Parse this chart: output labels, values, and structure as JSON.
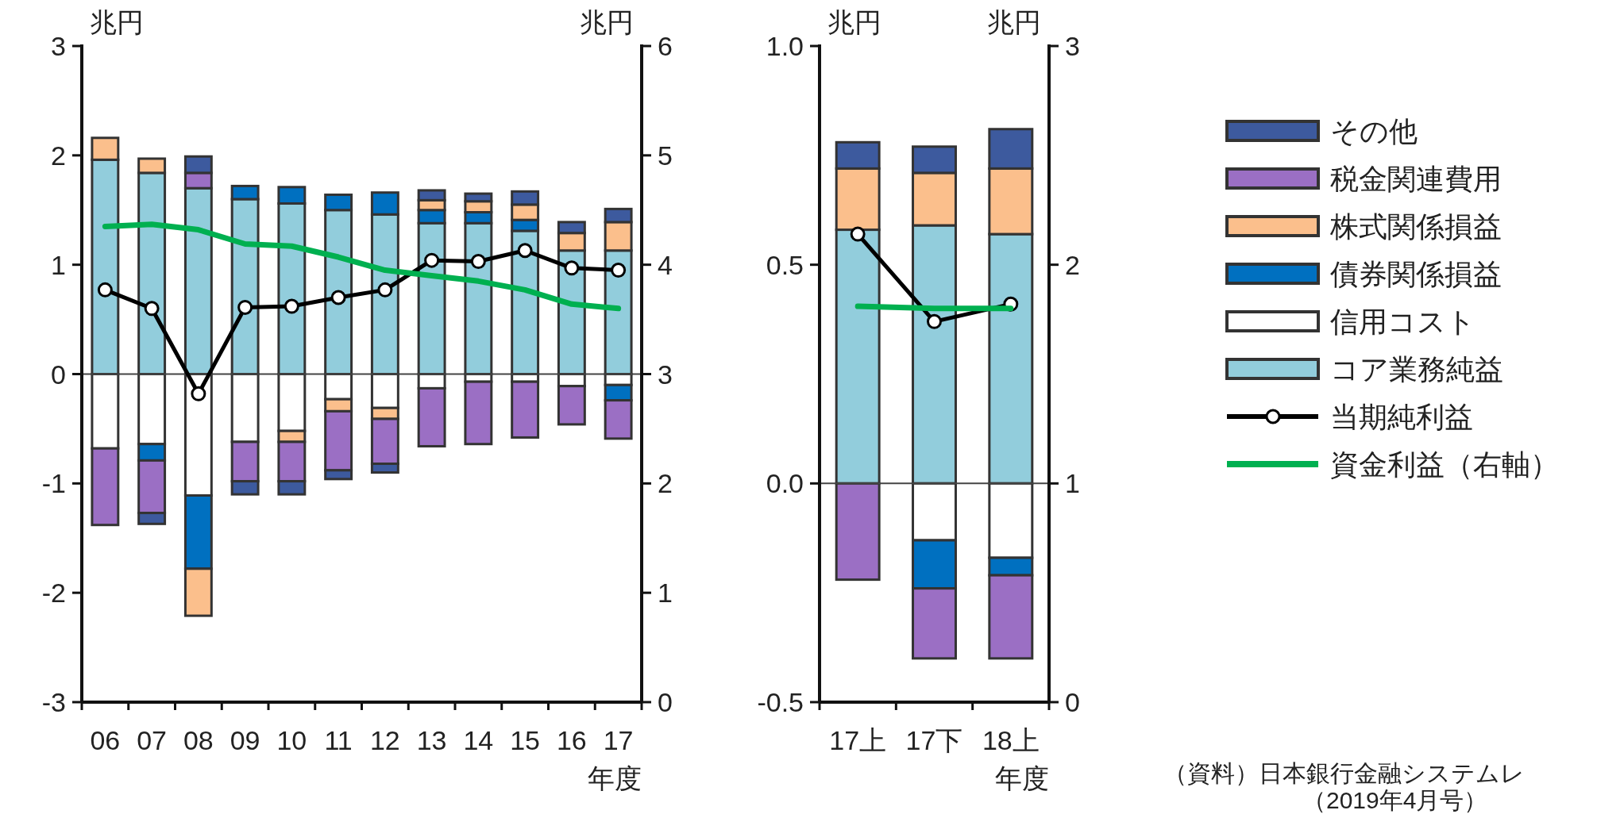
{
  "chart_data": [
    {
      "type": "bar",
      "stacked": true,
      "categories": [
        "06",
        "07",
        "08",
        "09",
        "10",
        "11",
        "12",
        "13",
        "14",
        "15",
        "16",
        "17"
      ],
      "xlabel": "年度",
      "ylabel": "兆円",
      "y2label": "兆円",
      "ylim": [
        -3,
        3
      ],
      "yticks": [
        -3,
        -2,
        -1,
        0,
        1,
        2,
        3
      ],
      "y2lim": [
        0,
        6
      ],
      "y2ticks": [
        0,
        1,
        2,
        3,
        4,
        5,
        6
      ],
      "series": [
        {
          "color": "#92cddc",
          "values": [
            1.96,
            1.84,
            1.7,
            1.6,
            1.56,
            1.5,
            1.46,
            1.38,
            1.38,
            1.31,
            1.13,
            1.13
          ]
        },
        {
          "color": "#ffffff",
          "values": [
            -0.68,
            -0.64,
            -1.11,
            -0.62,
            -0.52,
            -0.23,
            -0.31,
            -0.13,
            -0.07,
            -0.07,
            -0.11,
            -0.1
          ]
        },
        {
          "color": "#0070c0",
          "values": [
            null,
            -0.15,
            -0.67,
            0.12,
            0.15,
            0.14,
            0.2,
            0.12,
            0.1,
            0.1,
            null,
            -0.14
          ]
        },
        {
          "color": "#fbbf8c",
          "values": [
            0.2,
            0.13,
            -0.43,
            null,
            -0.1,
            -0.11,
            -0.1,
            0.09,
            0.1,
            0.14,
            0.16,
            0.26
          ]
        },
        {
          "color": "#9b6fc4",
          "values": [
            -0.7,
            -0.48,
            0.14,
            -0.36,
            -0.36,
            -0.54,
            -0.41,
            -0.53,
            -0.57,
            -0.51,
            -0.35,
            -0.35
          ]
        },
        {
          "color": "#3d5a9e",
          "values": [
            null,
            -0.1,
            0.15,
            -0.12,
            -0.12,
            -0.08,
            -0.08,
            0.09,
            0.07,
            0.12,
            0.1,
            0.12
          ]
        },
        {
          "type": "line",
          "color": "#000000",
          "marker": "circle",
          "values": [
            0.77,
            0.6,
            -0.18,
            0.61,
            0.62,
            0.7,
            0.77,
            1.04,
            1.03,
            1.13,
            0.97,
            0.95
          ]
        },
        {
          "type": "line",
          "axis": "y2",
          "color": "#00b050",
          "values": [
            4.35,
            4.37,
            4.32,
            4.19,
            4.17,
            4.07,
            3.95,
            3.9,
            3.85,
            3.77,
            3.64,
            3.6
          ]
        }
      ]
    },
    {
      "type": "bar",
      "stacked": true,
      "categories": [
        "17上",
        "17下",
        "18上"
      ],
      "xlabel": "年度",
      "ylabel": "兆円",
      "y2label": "兆円",
      "ylim": [
        -0.5,
        1.0
      ],
      "yticks": [
        {
          "value": -0.5,
          "label": "-0.5"
        },
        {
          "value": 0,
          "label": "0.0"
        },
        {
          "value": 0.5,
          "label": "0.5"
        },
        {
          "value": 1.0,
          "label": "1.0"
        }
      ],
      "y2lim": [
        0,
        3
      ],
      "y2ticks": [
        0,
        1,
        2,
        3
      ],
      "legend": "right",
      "annotations": [
        "（資料）日本銀行金融システムレ",
        "（2019年4月号）"
      ],
      "series": [
        {
          "name": "コア業務純益",
          "color": "#92cddc",
          "values": [
            0.58,
            0.59,
            0.57
          ]
        },
        {
          "name": "信用コスト",
          "color": "#ffffff",
          "values": [
            null,
            -0.13,
            -0.17
          ]
        },
        {
          "name": "債券関係損益",
          "color": "#0070c0",
          "values": [
            null,
            -0.11,
            -0.04
          ]
        },
        {
          "name": "株式関係損益",
          "color": "#fbbf8c",
          "values": [
            0.14,
            0.12,
            0.15
          ]
        },
        {
          "name": "税金関連費用",
          "color": "#9b6fc4",
          "values": [
            -0.22,
            -0.16,
            -0.19
          ]
        },
        {
          "name": "その他",
          "color": "#3d5a9e",
          "values": [
            0.06,
            0.06,
            0.09
          ]
        },
        {
          "name": "当期純利益",
          "type": "line",
          "color": "#000000",
          "marker": "circle",
          "values": [
            0.57,
            0.37,
            0.41
          ]
        },
        {
          "name": "資金利益（右軸）",
          "type": "line",
          "axis": "y2",
          "color": "#00b050",
          "values": [
            1.81,
            1.8,
            1.8
          ]
        }
      ]
    }
  ]
}
